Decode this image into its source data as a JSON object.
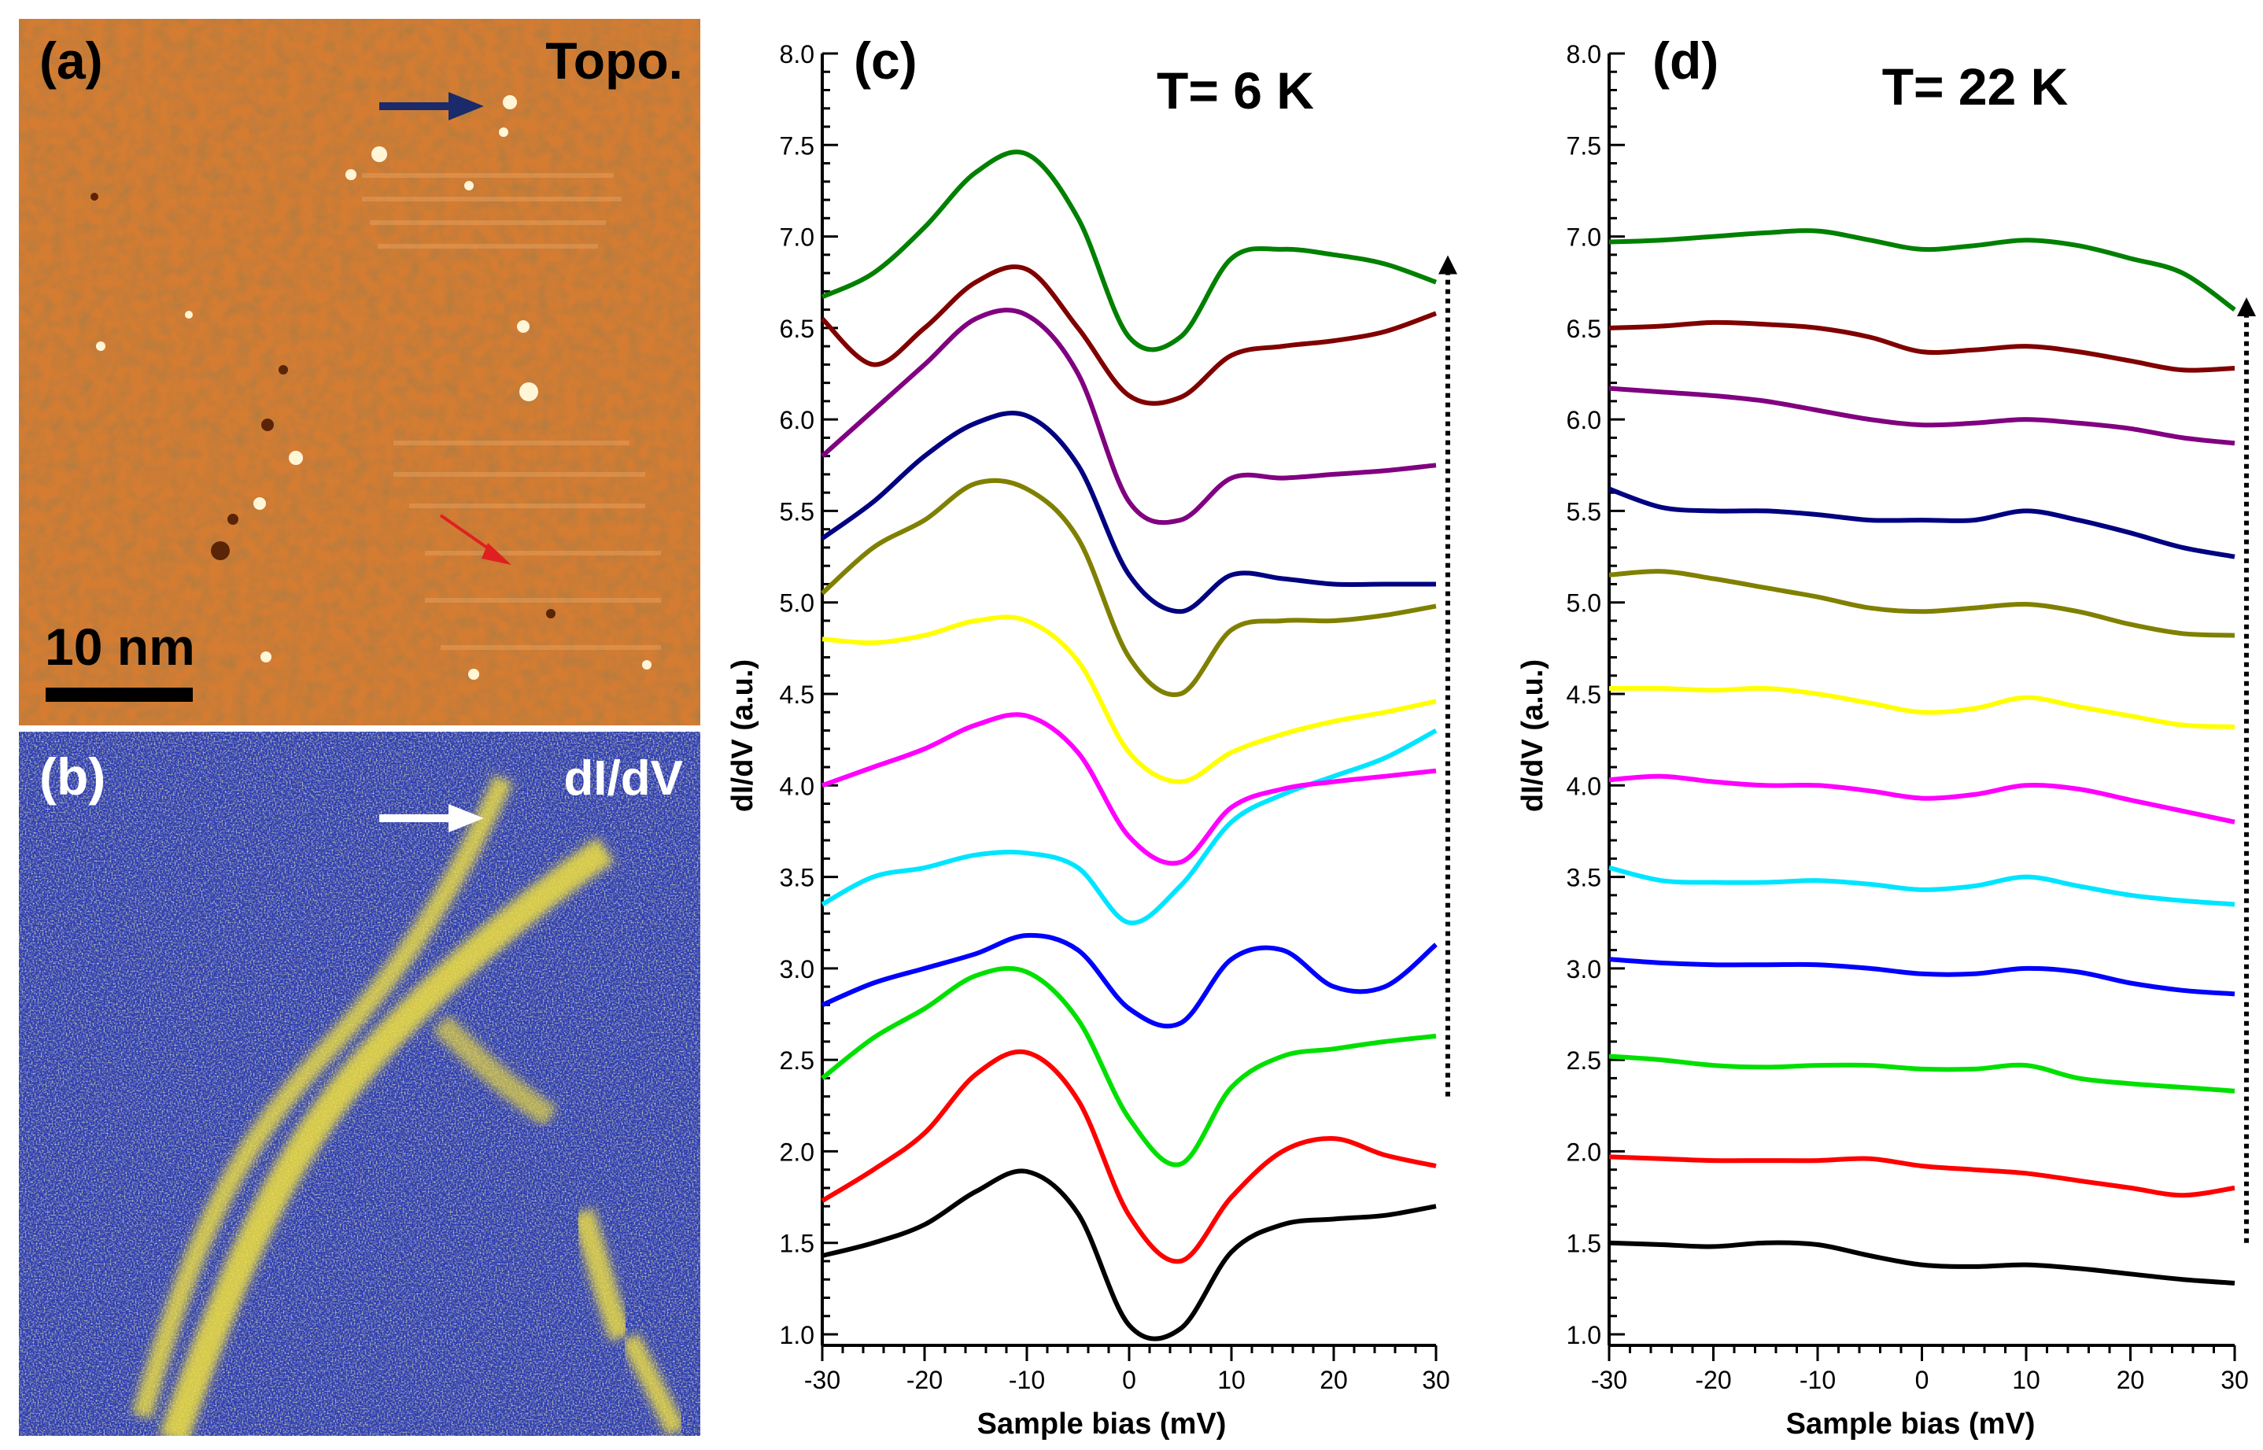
{
  "figure": {
    "panel_a": {
      "label": "(a)",
      "tag": "Topo.",
      "scale_bar_label": "10 nm"
    },
    "panel_b": {
      "label": "(b)",
      "tag": "dI/dV"
    },
    "panel_c": {
      "label": "(c)",
      "temperature": "T= 6 K"
    },
    "panel_d": {
      "label": "(d)",
      "temperature": "T= 22 K"
    }
  },
  "colors": {
    "topo_bg": "#d07a30",
    "topo_dark": "#7a3a10",
    "topo_bright": "#fff4d0",
    "didv_bg": "#2a3bb0",
    "didv_bright": "#f0e040",
    "arrow_navy": "#1a2a6a",
    "arrow_red": "#e02020",
    "arrow_white": "#ffffff"
  },
  "chart_data": [
    {
      "type": "line",
      "id": "c",
      "title": "T= 6 K",
      "xlabel": "Sample bias (mV)",
      "ylabel": "dI/dV (a.u.)",
      "xlim": [
        -30,
        30
      ],
      "ylim": [
        0.9,
        8.0
      ],
      "xticks": [
        -30,
        -20,
        -10,
        0,
        10,
        20,
        30
      ],
      "yticks": [
        1.0,
        1.5,
        2.0,
        2.5,
        3.0,
        3.5,
        4.0,
        4.5,
        5.0,
        5.5,
        6.0,
        6.5,
        7.0,
        7.5,
        8.0
      ],
      "x": [
        -30,
        -25,
        -20,
        -15,
        -10,
        -5,
        0,
        5,
        10,
        15,
        20,
        25,
        30
      ],
      "series": [
        {
          "name": "black",
          "color": "#000000",
          "values": [
            1.43,
            1.5,
            1.6,
            1.78,
            1.89,
            1.66,
            1.05,
            1.03,
            1.45,
            1.6,
            1.63,
            1.65,
            1.7
          ]
        },
        {
          "name": "red",
          "color": "#ff0000",
          "values": [
            1.73,
            1.9,
            2.1,
            2.42,
            2.54,
            2.28,
            1.65,
            1.4,
            1.75,
            2.0,
            2.07,
            1.98,
            1.92
          ]
        },
        {
          "name": "green",
          "color": "#00e000",
          "values": [
            2.4,
            2.62,
            2.78,
            2.96,
            2.98,
            2.72,
            2.18,
            1.93,
            2.35,
            2.52,
            2.56,
            2.6,
            2.63
          ]
        },
        {
          "name": "blue",
          "color": "#0000ff",
          "values": [
            2.8,
            2.92,
            3.0,
            3.08,
            3.18,
            3.1,
            2.78,
            2.7,
            3.05,
            3.1,
            2.9,
            2.9,
            3.13
          ]
        },
        {
          "name": "cyan",
          "color": "#00e5ff",
          "values": [
            3.35,
            3.5,
            3.55,
            3.62,
            3.63,
            3.55,
            3.25,
            3.45,
            3.8,
            3.95,
            4.05,
            4.15,
            4.3
          ]
        },
        {
          "name": "magenta",
          "color": "#ff00ff",
          "values": [
            4.0,
            4.1,
            4.2,
            4.33,
            4.38,
            4.18,
            3.72,
            3.58,
            3.88,
            3.98,
            4.02,
            4.05,
            4.08
          ]
        },
        {
          "name": "yellow",
          "color": "#ffff00",
          "values": [
            4.8,
            4.78,
            4.82,
            4.9,
            4.9,
            4.68,
            4.18,
            4.02,
            4.18,
            4.28,
            4.35,
            4.4,
            4.46
          ]
        },
        {
          "name": "olive",
          "color": "#808000",
          "values": [
            5.05,
            5.3,
            5.45,
            5.65,
            5.62,
            5.35,
            4.7,
            4.5,
            4.85,
            4.9,
            4.9,
            4.93,
            4.98
          ]
        },
        {
          "name": "navy",
          "color": "#000080",
          "values": [
            5.35,
            5.55,
            5.8,
            5.98,
            6.02,
            5.75,
            5.15,
            4.95,
            5.15,
            5.13,
            5.1,
            5.1,
            5.1
          ]
        },
        {
          "name": "purple",
          "color": "#800080",
          "values": [
            5.8,
            6.05,
            6.3,
            6.55,
            6.57,
            6.25,
            5.55,
            5.45,
            5.68,
            5.68,
            5.7,
            5.72,
            5.75
          ]
        },
        {
          "name": "maroon",
          "color": "#800000",
          "values": [
            6.55,
            6.3,
            6.5,
            6.75,
            6.82,
            6.5,
            6.13,
            6.12,
            6.35,
            6.4,
            6.43,
            6.48,
            6.58
          ]
        },
        {
          "name": "darkgreen",
          "color": "#008000",
          "values": [
            6.67,
            6.8,
            7.05,
            7.35,
            7.45,
            7.1,
            6.45,
            6.45,
            6.88,
            6.93,
            6.9,
            6.85,
            6.75
          ]
        }
      ],
      "dotted_arrow": {
        "x": 30.5,
        "y_from": 2.3,
        "y_to": 6.88
      }
    },
    {
      "type": "line",
      "id": "d",
      "title": "T= 22 K",
      "xlabel": "Sample bias (mV)",
      "ylabel": "dI/dV (a.u.)",
      "xlim": [
        -30,
        30
      ],
      "ylim": [
        0.9,
        8.0
      ],
      "xticks": [
        -30,
        -20,
        -10,
        0,
        10,
        20,
        30
      ],
      "yticks": [
        1.0,
        1.5,
        2.0,
        2.5,
        3.0,
        3.5,
        4.0,
        4.5,
        5.0,
        5.5,
        6.0,
        6.5,
        7.0,
        7.5,
        8.0
      ],
      "x": [
        -30,
        -25,
        -20,
        -15,
        -10,
        -5,
        0,
        5,
        10,
        15,
        20,
        25,
        30
      ],
      "series": [
        {
          "name": "black",
          "color": "#000000",
          "values": [
            1.5,
            1.49,
            1.48,
            1.5,
            1.49,
            1.43,
            1.38,
            1.37,
            1.38,
            1.36,
            1.33,
            1.3,
            1.28
          ]
        },
        {
          "name": "red",
          "color": "#ff0000",
          "values": [
            1.97,
            1.96,
            1.95,
            1.95,
            1.95,
            1.96,
            1.92,
            1.9,
            1.88,
            1.84,
            1.8,
            1.76,
            1.8
          ]
        },
        {
          "name": "green",
          "color": "#00e000",
          "values": [
            2.52,
            2.5,
            2.47,
            2.46,
            2.47,
            2.47,
            2.45,
            2.45,
            2.47,
            2.4,
            2.37,
            2.35,
            2.33
          ]
        },
        {
          "name": "blue",
          "color": "#0000ff",
          "values": [
            3.05,
            3.03,
            3.02,
            3.02,
            3.02,
            3.0,
            2.97,
            2.97,
            3.0,
            2.98,
            2.92,
            2.88,
            2.86
          ]
        },
        {
          "name": "cyan",
          "color": "#00e5ff",
          "values": [
            3.55,
            3.48,
            3.47,
            3.47,
            3.48,
            3.46,
            3.43,
            3.45,
            3.5,
            3.45,
            3.4,
            3.37,
            3.35
          ]
        },
        {
          "name": "magenta",
          "color": "#ff00ff",
          "values": [
            4.03,
            4.05,
            4.02,
            4.0,
            4.0,
            3.97,
            3.93,
            3.95,
            4.0,
            3.98,
            3.92,
            3.86,
            3.8
          ]
        },
        {
          "name": "yellow",
          "color": "#ffff00",
          "values": [
            4.53,
            4.53,
            4.52,
            4.53,
            4.5,
            4.45,
            4.4,
            4.42,
            4.48,
            4.43,
            4.38,
            4.33,
            4.32
          ]
        },
        {
          "name": "olive",
          "color": "#808000",
          "values": [
            5.15,
            5.17,
            5.13,
            5.08,
            5.03,
            4.97,
            4.95,
            4.97,
            4.99,
            4.95,
            4.88,
            4.83,
            4.82
          ]
        },
        {
          "name": "navy",
          "color": "#000080",
          "values": [
            5.62,
            5.52,
            5.5,
            5.5,
            5.48,
            5.45,
            5.45,
            5.45,
            5.5,
            5.45,
            5.38,
            5.3,
            5.25
          ]
        },
        {
          "name": "purple",
          "color": "#800080",
          "values": [
            6.17,
            6.15,
            6.13,
            6.1,
            6.05,
            6.0,
            5.97,
            5.98,
            6.0,
            5.98,
            5.95,
            5.9,
            5.87
          ]
        },
        {
          "name": "maroon",
          "color": "#800000",
          "values": [
            6.5,
            6.51,
            6.53,
            6.52,
            6.5,
            6.45,
            6.37,
            6.38,
            6.4,
            6.37,
            6.32,
            6.27,
            6.28
          ]
        },
        {
          "name": "darkgreen",
          "color": "#008000",
          "values": [
            6.97,
            6.98,
            7.0,
            7.02,
            7.03,
            6.98,
            6.93,
            6.95,
            6.98,
            6.95,
            6.88,
            6.8,
            6.6
          ]
        }
      ],
      "dotted_arrow": {
        "x": 30.5,
        "y_from": 1.5,
        "y_to": 6.65
      }
    }
  ]
}
